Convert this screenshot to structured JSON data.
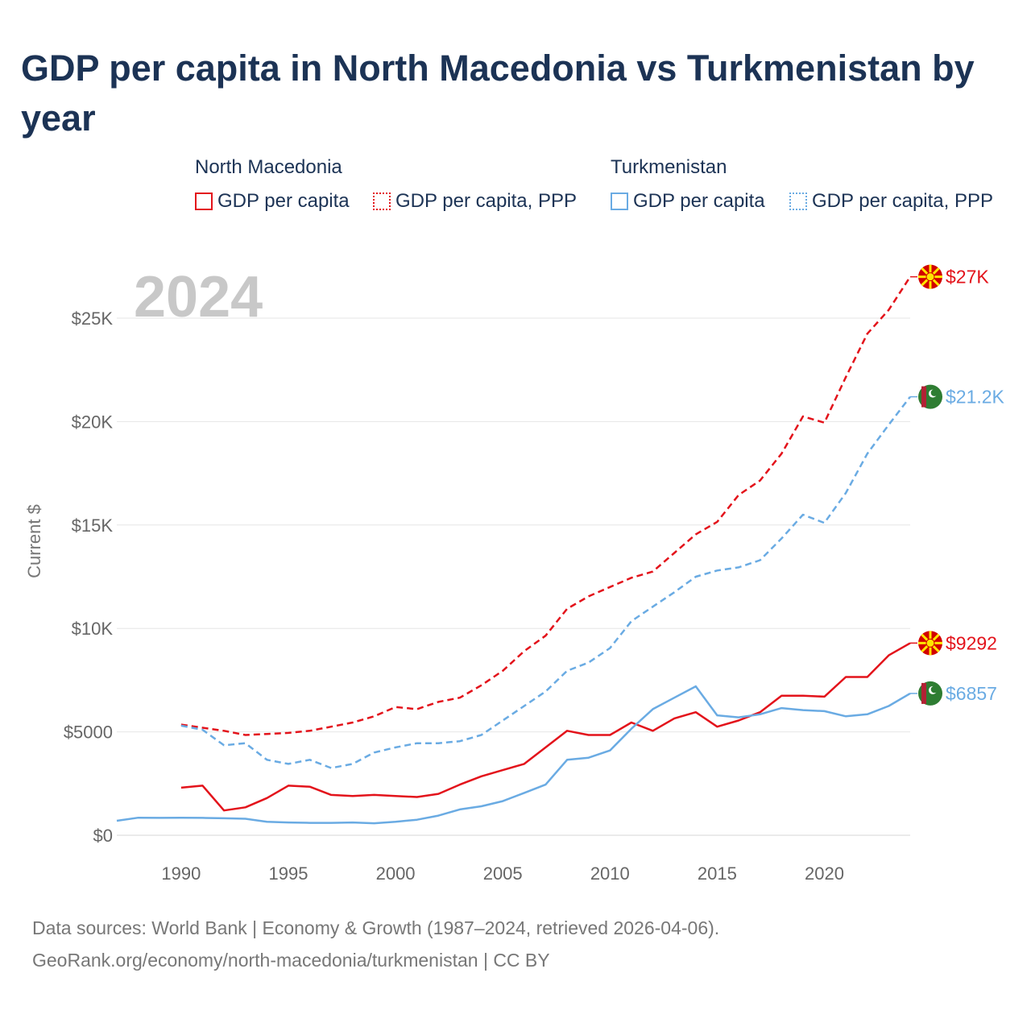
{
  "title": "GDP per capita in North Macedonia vs Turkmenistan by year",
  "legend": {
    "groups": [
      {
        "name": "North Macedonia",
        "items": [
          "GDP per capita",
          "GDP per capita, PPP"
        ],
        "color": "#e3131b"
      },
      {
        "name": "Turkmenistan",
        "items": [
          "GDP per capita",
          "GDP per capita, PPP"
        ],
        "color": "#6aabe3"
      }
    ]
  },
  "year_watermark": "2024",
  "footer": {
    "line1": "Data sources: World Bank | Economy & Growth (1987–2024, retrieved 2026-04-06).",
    "line2": "GeoRank.org/economy/north-macedonia/turkmenistan | CC BY"
  },
  "chart_data": {
    "type": "line",
    "title": "GDP per capita in North Macedonia vs Turkmenistan by year",
    "xlabel": "",
    "ylabel": "Current $",
    "xlim": [
      1987,
      2024
    ],
    "ylim": [
      0,
      27500
    ],
    "x_ticks": [
      1990,
      1995,
      2000,
      2005,
      2010,
      2015,
      2020
    ],
    "y_ticks": [
      {
        "value": 0,
        "label": "$0"
      },
      {
        "value": 5000,
        "label": "$5000"
      },
      {
        "value": 10000,
        "label": "$10K"
      },
      {
        "value": 15000,
        "label": "$15K"
      },
      {
        "value": 20000,
        "label": "$20K"
      },
      {
        "value": 25000,
        "label": "$25K"
      }
    ],
    "grid": true,
    "series": [
      {
        "name": "North Macedonia GDP per capita",
        "country": "North Macedonia",
        "color": "#e3131b",
        "style": "solid",
        "end_label": "$9292",
        "x": [
          1990,
          1991,
          1992,
          1993,
          1994,
          1995,
          1996,
          1997,
          1998,
          1999,
          2000,
          2001,
          2002,
          2003,
          2004,
          2005,
          2006,
          2007,
          2008,
          2009,
          2010,
          2011,
          2012,
          2013,
          2014,
          2015,
          2016,
          2017,
          2018,
          2019,
          2020,
          2021,
          2022,
          2023,
          2024
        ],
        "values": [
          2300,
          2400,
          1200,
          1350,
          1800,
          2400,
          2350,
          1950,
          1900,
          1950,
          1900,
          1850,
          2000,
          2450,
          2850,
          3150,
          3450,
          4250,
          5050,
          4850,
          4850,
          5450,
          5050,
          5650,
          5950,
          5250,
          5550,
          5950,
          6750,
          6750,
          6700,
          7650,
          7650,
          8700,
          9292
        ]
      },
      {
        "name": "North Macedonia GDP per capita, PPP",
        "country": "North Macedonia",
        "color": "#e3131b",
        "style": "dashed",
        "end_label": "$27K",
        "x": [
          1990,
          1991,
          1992,
          1993,
          1994,
          1995,
          1996,
          1997,
          1998,
          1999,
          2000,
          2001,
          2002,
          2003,
          2004,
          2005,
          2006,
          2007,
          2008,
          2009,
          2010,
          2011,
          2012,
          2013,
          2014,
          2015,
          2016,
          2017,
          2018,
          2019,
          2020,
          2021,
          2022,
          2023,
          2024
        ],
        "values": [
          5350,
          5200,
          5050,
          4850,
          4900,
          4950,
          5050,
          5250,
          5450,
          5750,
          6200,
          6100,
          6450,
          6650,
          7250,
          7950,
          8900,
          9650,
          10950,
          11550,
          12000,
          12450,
          12750,
          13650,
          14550,
          15150,
          16450,
          17150,
          18450,
          20250,
          19950,
          22150,
          24250,
          25400,
          27000
        ]
      },
      {
        "name": "Turkmenistan GDP per capita",
        "country": "Turkmenistan",
        "color": "#6aabe3",
        "style": "solid",
        "end_label": "$6857",
        "x": [
          1987,
          1988,
          1989,
          1990,
          1991,
          1992,
          1993,
          1994,
          1995,
          1996,
          1997,
          1998,
          1999,
          2000,
          2001,
          2002,
          2003,
          2004,
          2005,
          2006,
          2007,
          2008,
          2009,
          2010,
          2011,
          2012,
          2013,
          2014,
          2015,
          2016,
          2017,
          2018,
          2019,
          2020,
          2021,
          2022,
          2023,
          2024
        ],
        "values": [
          700,
          850,
          840,
          850,
          840,
          820,
          800,
          650,
          620,
          600,
          600,
          620,
          580,
          650,
          750,
          950,
          1250,
          1400,
          1650,
          2050,
          2450,
          3650,
          3750,
          4100,
          5150,
          6100,
          6650,
          7200,
          5800,
          5700,
          5850,
          6150,
          6050,
          6000,
          5750,
          5850,
          6250,
          6857
        ]
      },
      {
        "name": "Turkmenistan GDP per capita, PPP",
        "country": "Turkmenistan",
        "color": "#6aabe3",
        "style": "dashed",
        "end_label": "$21.2K",
        "x": [
          1990,
          1991,
          1992,
          1993,
          1994,
          1995,
          1996,
          1997,
          1998,
          1999,
          2000,
          2001,
          2002,
          2003,
          2004,
          2005,
          2006,
          2007,
          2008,
          2009,
          2010,
          2011,
          2012,
          2013,
          2014,
          2015,
          2016,
          2017,
          2018,
          2019,
          2020,
          2021,
          2022,
          2023,
          2024
        ],
        "values": [
          5300,
          5100,
          4350,
          4450,
          3650,
          3450,
          3650,
          3250,
          3450,
          4000,
          4250,
          4450,
          4450,
          4550,
          4850,
          5550,
          6250,
          6950,
          7950,
          8350,
          9050,
          10350,
          11050,
          11750,
          12500,
          12800,
          12950,
          13300,
          14350,
          15500,
          15100,
          16550,
          18450,
          19850,
          21200
        ]
      }
    ]
  }
}
